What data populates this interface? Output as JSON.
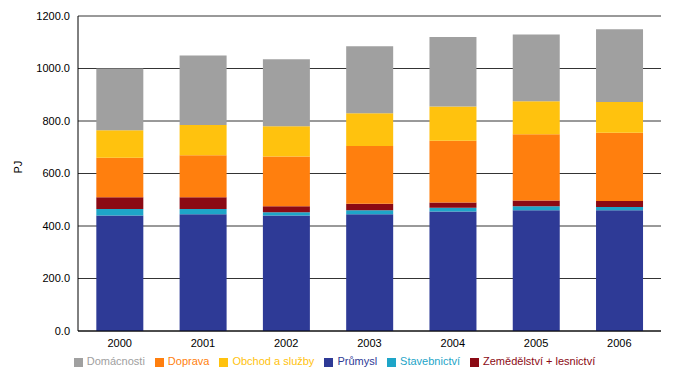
{
  "chart_data": {
    "type": "bar",
    "stacked": true,
    "grid": true,
    "legend": "bottom",
    "y_label": "PJ",
    "categories": [
      "2000",
      "2001",
      "2002",
      "2003",
      "2004",
      "2005",
      "2006"
    ],
    "ylim": [
      0,
      1200
    ],
    "yticks": [
      {
        "value": 0,
        "label": "0.0"
      },
      {
        "value": 200,
        "label": "200.0"
      },
      {
        "value": 400,
        "label": "400.0"
      },
      {
        "value": 600,
        "label": "600.0"
      },
      {
        "value": 800,
        "label": "800.0"
      },
      {
        "value": 1000,
        "label": "1000.0"
      },
      {
        "value": 1200,
        "label": "1200.0"
      }
    ],
    "series": [
      {
        "name": "Průmysl",
        "color": "#2e3a96",
        "values": [
          440,
          445,
          440,
          445,
          455,
          460,
          460
        ]
      },
      {
        "name": "Stavebnictví",
        "color": "#1ea5c8",
        "values": [
          25,
          20,
          12,
          15,
          15,
          15,
          12
        ]
      },
      {
        "name": "Zemědělství + lesnictví",
        "color": "#8b0a14",
        "values": [
          45,
          45,
          23,
          25,
          20,
          22,
          23
        ]
      },
      {
        "name": "Doprava",
        "color": "#ff7f0e",
        "values": [
          150,
          160,
          190,
          220,
          235,
          253,
          260
        ]
      },
      {
        "name": "Obchod a služby",
        "color": "#ffc20e",
        "values": [
          105,
          115,
          115,
          125,
          130,
          125,
          117
        ]
      },
      {
        "name": "Domácnosti",
        "color": "#a0a0a0",
        "values": [
          235,
          265,
          255,
          255,
          265,
          255,
          278
        ]
      }
    ]
  }
}
